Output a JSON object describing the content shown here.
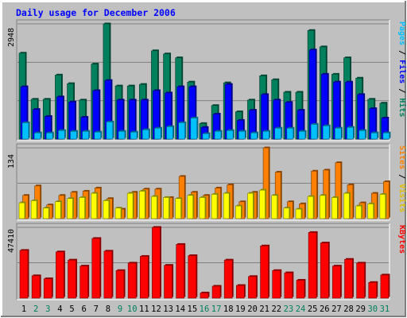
{
  "title": "Daily usage for December 2006",
  "colors": {
    "hits": "#00805c",
    "files": "#0000ff",
    "pages": "#00c0ff",
    "visits": "#ff8000",
    "sites": "#ffff00",
    "kbytes": "#ff0000",
    "title": "#0000ff",
    "weekday": "#000000",
    "weekend": "#00805c"
  },
  "chart_data": [
    {
      "type": "bar",
      "name": "hits-files-pages",
      "categories": [
        "1",
        "2",
        "3",
        "4",
        "5",
        "6",
        "7",
        "8",
        "9",
        "10",
        "11",
        "12",
        "13",
        "14",
        "15",
        "16",
        "17",
        "18",
        "19",
        "20",
        "21",
        "22",
        "23",
        "24",
        "25",
        "26",
        "27",
        "28",
        "29",
        "30",
        "31"
      ],
      "weekend_days": [
        "2",
        "3",
        "9",
        "10",
        "16",
        "17",
        "23",
        "24",
        "30",
        "31"
      ],
      "ymax_label": "2948",
      "ylim": [
        0,
        2948
      ],
      "right_label": [
        "Pages",
        " / ",
        "Files",
        " / ",
        "Hits"
      ],
      "series": [
        {
          "name": "Hits",
          "values": [
            2200,
            1020,
            1020,
            1640,
            1420,
            1000,
            1920,
            2948,
            1360,
            1360,
            1400,
            2260,
            2180,
            2080,
            1460,
            400,
            860,
            1440,
            700,
            1000,
            1620,
            1520,
            1200,
            1200,
            2780,
            2360,
            1660,
            2080,
            1560,
            1020,
            920
          ]
        },
        {
          "name": "Files",
          "values": [
            1340,
            760,
            580,
            1080,
            950,
            560,
            1240,
            1500,
            1000,
            1000,
            1000,
            1240,
            1180,
            1340,
            1340,
            300,
            640,
            1400,
            480,
            740,
            1140,
            1000,
            940,
            740,
            2280,
            1660,
            1460,
            1460,
            1140,
            780,
            540
          ]
        },
        {
          "name": "Pages",
          "values": [
            420,
            160,
            160,
            220,
            200,
            200,
            180,
            440,
            200,
            180,
            240,
            280,
            320,
            420,
            540,
            140,
            200,
            220,
            200,
            160,
            200,
            280,
            280,
            200,
            380,
            340,
            280,
            300,
            220,
            160,
            160
          ]
        }
      ]
    },
    {
      "type": "bar",
      "name": "visits-sites",
      "categories": [
        "1",
        "2",
        "3",
        "4",
        "5",
        "6",
        "7",
        "8",
        "9",
        "10",
        "11",
        "12",
        "13",
        "14",
        "15",
        "16",
        "17",
        "18",
        "19",
        "20",
        "21",
        "22",
        "23",
        "24",
        "25",
        "26",
        "27",
        "28",
        "29",
        "30",
        "31"
      ],
      "ylim": [
        0,
        134
      ],
      "ymax_label": "134",
      "right_label": [
        "Sites",
        " / ",
        "Visits"
      ],
      "series": [
        {
          "name": "Visits",
          "values": [
            44,
            62,
            26,
            44,
            50,
            52,
            58,
            38,
            18,
            50,
            56,
            56,
            40,
            80,
            50,
            44,
            58,
            64,
            32,
            50,
            134,
            88,
            32,
            28,
            90,
            92,
            106,
            64,
            30,
            48,
            70
          ]
        },
        {
          "name": "Sites",
          "values": [
            30,
            34,
            20,
            32,
            38,
            40,
            48,
            34,
            20,
            48,
            52,
            42,
            40,
            38,
            44,
            40,
            46,
            48,
            24,
            48,
            54,
            44,
            20,
            18,
            42,
            44,
            40,
            48,
            24,
            28,
            46
          ]
        }
      ]
    },
    {
      "type": "bar",
      "name": "kbytes",
      "categories": [
        "1",
        "2",
        "3",
        "4",
        "5",
        "6",
        "7",
        "8",
        "9",
        "10",
        "11",
        "12",
        "13",
        "14",
        "15",
        "16",
        "17",
        "18",
        "19",
        "20",
        "21",
        "22",
        "23",
        "24",
        "25",
        "26",
        "27",
        "28",
        "29",
        "30",
        "31"
      ],
      "ylim": [
        0,
        47410
      ],
      "ymax_label": "47410",
      "right_label": [
        "KBytes"
      ],
      "series": [
        {
          "name": "KBytes",
          "values": [
            32000,
            15000,
            13000,
            31000,
            25500,
            21500,
            40000,
            31500,
            18500,
            23500,
            28000,
            47410,
            22000,
            36000,
            28500,
            3500,
            8000,
            25500,
            8500,
            14500,
            35000,
            18500,
            17000,
            12000,
            44000,
            37000,
            21500,
            26000,
            23500,
            10500,
            15500
          ]
        }
      ]
    }
  ]
}
